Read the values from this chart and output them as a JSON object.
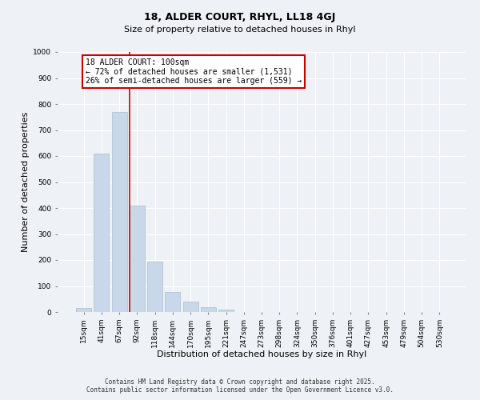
{
  "title": "18, ALDER COURT, RHYL, LL18 4GJ",
  "subtitle": "Size of property relative to detached houses in Rhyl",
  "xlabel": "Distribution of detached houses by size in Rhyl",
  "ylabel": "Number of detached properties",
  "bar_labels": [
    "15sqm",
    "41sqm",
    "67sqm",
    "92sqm",
    "118sqm",
    "144sqm",
    "170sqm",
    "195sqm",
    "221sqm",
    "247sqm",
    "273sqm",
    "298sqm",
    "324sqm",
    "350sqm",
    "376sqm",
    "401sqm",
    "427sqm",
    "453sqm",
    "479sqm",
    "504sqm",
    "530sqm"
  ],
  "bar_values": [
    15,
    608,
    770,
    410,
    193,
    78,
    40,
    18,
    10,
    0,
    0,
    0,
    0,
    0,
    0,
    0,
    0,
    0,
    0,
    0,
    0
  ],
  "bar_color": "#c8d8ea",
  "bar_edge_color": "#aabccc",
  "ylim": [
    0,
    1000
  ],
  "yticks": [
    0,
    100,
    200,
    300,
    400,
    500,
    600,
    700,
    800,
    900,
    1000
  ],
  "marker_bar_index": 3,
  "marker_line_color": "#cc0000",
  "annotation_title": "18 ALDER COURT: 100sqm",
  "annotation_line1": "← 72% of detached houses are smaller (1,531)",
  "annotation_line2": "26% of semi-detached houses are larger (559) →",
  "annotation_box_color": "#ffffff",
  "annotation_box_edge_color": "#cc0000",
  "footer1": "Contains HM Land Registry data © Crown copyright and database right 2025.",
  "footer2": "Contains public sector information licensed under the Open Government Licence v3.0.",
  "bg_color": "#eef2f7",
  "plot_bg_color": "#eef2f7",
  "grid_color": "#ffffff",
  "title_fontsize": 9,
  "subtitle_fontsize": 8,
  "axis_label_fontsize": 8,
  "tick_fontsize": 6.5,
  "annotation_fontsize": 7,
  "footer_fontsize": 5.5
}
